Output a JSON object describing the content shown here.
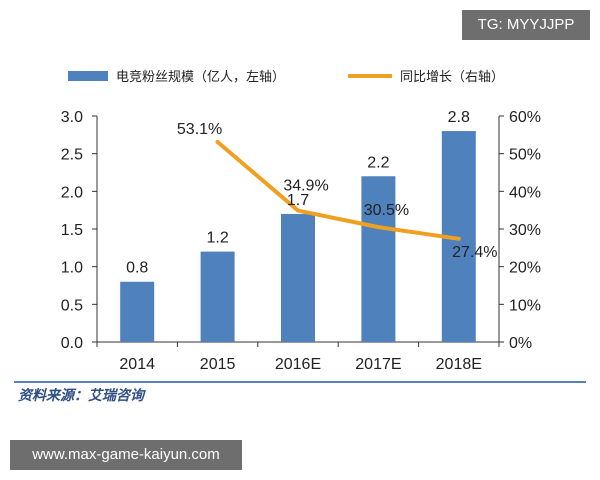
{
  "badge_text": "TG: MYYJJPP",
  "footer_text": "www.max-game-kaiyun.com",
  "source_text": "资料来源：艾瑞咨询",
  "colors": {
    "bar": "#4f81bd",
    "line": "#f0a020"
  },
  "chart_data": {
    "type": "bar",
    "categories": [
      "2014",
      "2015",
      "2016E",
      "2017E",
      "2018E"
    ],
    "series": [
      {
        "name": "电竞粉丝规模（亿人，左轴）",
        "type": "bar",
        "axis": "left",
        "values": [
          0.8,
          1.2,
          1.7,
          2.2,
          2.8
        ],
        "labels": [
          "0.8",
          "1.2",
          "1.7",
          "2.2",
          "2.8"
        ]
      },
      {
        "name": "同比增长（右轴）",
        "type": "line",
        "axis": "right",
        "values": [
          null,
          53.1,
          34.9,
          30.5,
          27.4
        ],
        "labels": [
          "",
          "53.1%",
          "34.9%",
          "30.5%",
          "27.4%"
        ]
      }
    ],
    "y_left": {
      "min": 0,
      "max": 3.0,
      "ticks": [
        "0.0",
        "0.5",
        "1.0",
        "1.5",
        "2.0",
        "2.5",
        "3.0"
      ]
    },
    "y_right": {
      "min": 0,
      "max": 60,
      "ticks": [
        "0%",
        "10%",
        "20%",
        "30%",
        "40%",
        "50%",
        "60%"
      ]
    },
    "legend_position": "top",
    "grid": false
  }
}
